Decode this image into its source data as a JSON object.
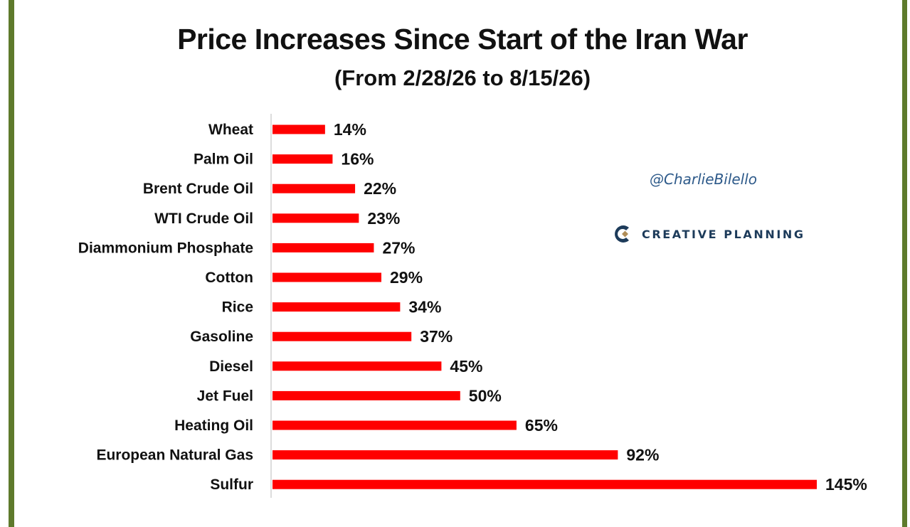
{
  "chart_data": {
    "type": "bar",
    "orientation": "horizontal",
    "title": "Price Increases Since Start of the Iran War",
    "subtitle": "(From 2/28/26 to 8/15/26)",
    "categories": [
      "Wheat",
      "Palm Oil",
      "Brent Crude Oil",
      "WTI Crude Oil",
      "Diammonium Phosphate",
      "Cotton",
      "Rice",
      "Gasoline",
      "Diesel",
      "Jet Fuel",
      "Heating Oil",
      "European Natural Gas",
      "Sulfur"
    ],
    "values": [
      14,
      16,
      22,
      23,
      27,
      29,
      34,
      37,
      45,
      50,
      65,
      92,
      145
    ],
    "value_labels": [
      "14%",
      "16%",
      "22%",
      "23%",
      "27%",
      "29%",
      "34%",
      "37%",
      "45%",
      "50%",
      "65%",
      "92%",
      "145%"
    ],
    "xlim": [
      0,
      145
    ],
    "grid": false,
    "bar_color": "#ff0000"
  },
  "watermark": "@CharlieBilello",
  "brand": {
    "name": "CREATIVE PLANNING",
    "logo_icon": "creative-planning-logo-icon"
  },
  "colors": {
    "frame": "#5e7a2c",
    "bar": "#ff0000",
    "text": "#111111",
    "watermark": "#2e5a8a",
    "brand": "#1d3b5a"
  }
}
